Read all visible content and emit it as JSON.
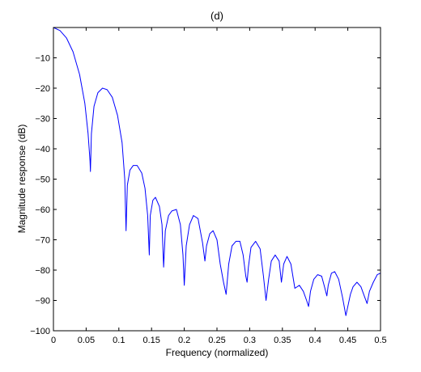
{
  "chart_data": {
    "type": "line",
    "title": "(d)",
    "xlabel": "Frequency (normalized)",
    "ylabel": "Magnitude response (dB)",
    "xlim": [
      0,
      0.5
    ],
    "ylim": [
      -100,
      0
    ],
    "xticks": [
      0,
      0.05,
      0.1,
      0.15,
      0.2,
      0.25,
      0.3,
      0.35,
      0.4,
      0.45,
      0.5
    ],
    "xtick_labels": [
      "0",
      "0.05",
      "0.1",
      "0.15",
      "0.2",
      "0.25",
      "0.3",
      "0.35",
      "0.4",
      "0.45",
      "0.5"
    ],
    "yticks": [
      -100,
      -90,
      -80,
      -70,
      -60,
      -50,
      -40,
      -30,
      -20,
      -10
    ],
    "ytick_labels": [
      "−100",
      "−90",
      "−80",
      "−70",
      "−60",
      "−50",
      "−40",
      "−30",
      "−20",
      "−10"
    ],
    "grid": false,
    "line_color": "#0000ff",
    "series": [
      {
        "x": [
          0,
          0.01,
          0.02,
          0.03,
          0.04,
          0.048,
          0.053,
          0.056,
          0.0565,
          0.058,
          0.062,
          0.068,
          0.075,
          0.082,
          0.09,
          0.098,
          0.105,
          0.109,
          0.111,
          0.113,
          0.117,
          0.122,
          0.128,
          0.135,
          0.14,
          0.144,
          0.1465,
          0.148,
          0.152,
          0.156,
          0.162,
          0.166,
          0.1685,
          0.171,
          0.176,
          0.181,
          0.188,
          0.194,
          0.198,
          0.2,
          0.203,
          0.208,
          0.214,
          0.221,
          0.228,
          0.2315,
          0.234,
          0.239,
          0.244,
          0.25,
          0.255,
          0.26,
          0.264,
          0.268,
          0.273,
          0.279,
          0.285,
          0.29,
          0.294,
          0.296,
          0.298,
          0.302,
          0.309,
          0.316,
          0.321,
          0.325,
          0.329,
          0.333,
          0.339,
          0.345,
          0.3485,
          0.352,
          0.357,
          0.363,
          0.369,
          0.376,
          0.382,
          0.387,
          0.39,
          0.393,
          0.398,
          0.404,
          0.41,
          0.415,
          0.418,
          0.42,
          0.425,
          0.43,
          0.436,
          0.442,
          0.447,
          0.451,
          0.454,
          0.458,
          0.464,
          0.47,
          0.476,
          0.4795,
          0.483,
          0.489,
          0.495,
          0.5
        ],
        "y": [
          0,
          -1,
          -3.5,
          -8,
          -15.5,
          -25,
          -35,
          -44,
          -47.5,
          -35,
          -26,
          -21.5,
          -20,
          -20.5,
          -23,
          -29,
          -38,
          -50,
          -67,
          -52,
          -47,
          -45.5,
          -45.5,
          -48,
          -53,
          -62,
          -75,
          -62,
          -57,
          -56,
          -59,
          -65,
          -79,
          -67,
          -62,
          -60.5,
          -60,
          -65,
          -75,
          -85,
          -72,
          -65,
          -62,
          -63,
          -71,
          -77,
          -72,
          -68,
          -67,
          -70,
          -78,
          -84,
          -88,
          -78,
          -72,
          -70.5,
          -70.5,
          -75,
          -82,
          -84,
          -79,
          -72.5,
          -70.5,
          -73,
          -82,
          -90,
          -83,
          -77,
          -75,
          -77,
          -84,
          -78,
          -75.5,
          -78,
          -86,
          -85,
          -87,
          -90,
          -92,
          -87,
          -83,
          -81.5,
          -82,
          -86,
          -88.5,
          -85,
          -81,
          -80.5,
          -83,
          -89,
          -95,
          -91,
          -88,
          -85.5,
          -84,
          -85.5,
          -89,
          -91,
          -87,
          -84,
          -81.5,
          -81
        ]
      }
    ]
  }
}
